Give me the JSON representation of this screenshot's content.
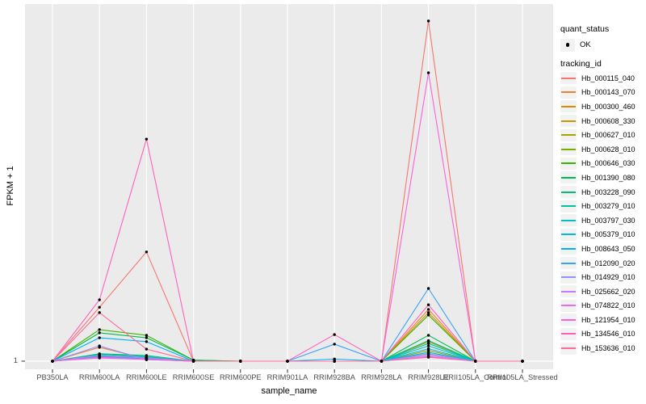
{
  "chart_data": {
    "type": "line",
    "title": "",
    "xlabel": "sample_name",
    "ylabel": "FPKM + 1",
    "y_tick_label": "1",
    "ylim": [
      0,
      100
    ],
    "grid": "white major gridlines on grey panel",
    "legend_position": "right",
    "panel_bg": "#EBEBEB",
    "gridline_color": "#FFFFFF",
    "point_color": "#000000",
    "categories": [
      "PB350LA",
      "RRIM600LA",
      "RRIM600LE",
      "RRIM600SE",
      "RRIM600PE",
      "RRIM901LA",
      "RRIM928BA",
      "RRIM928LA",
      "RRIM928LE",
      "RRII105LA_Control",
      "RRII105LA_Stressed"
    ],
    "series": [
      {
        "name": "Hb_000115_040",
        "color": "#F8766D",
        "values": [
          0,
          15.2,
          30.8,
          0,
          0,
          0,
          0,
          0,
          95.9,
          0,
          0
        ]
      },
      {
        "name": "Hb_000143_070",
        "color": "#EA8331",
        "values": [
          0,
          3.9,
          0.7,
          0,
          0,
          0,
          0,
          0,
          14.6,
          0,
          0
        ]
      },
      {
        "name": "Hb_000300_460",
        "color": "#D89000",
        "values": [
          0,
          1.6,
          0.7,
          0,
          0,
          0,
          0,
          0,
          13.7,
          0,
          0
        ]
      },
      {
        "name": "Hb_000608_330",
        "color": "#C09B00",
        "values": [
          0,
          1.3,
          0.9,
          0,
          0,
          0,
          0,
          0,
          5.5,
          0,
          0
        ]
      },
      {
        "name": "Hb_000627_010",
        "color": "#A3A500",
        "values": [
          0,
          1.1,
          0.5,
          0,
          0,
          0,
          0,
          0,
          3.0,
          0,
          0
        ]
      },
      {
        "name": "Hb_000628_010",
        "color": "#7CAE00",
        "values": [
          0,
          1.5,
          1.0,
          0,
          0,
          0,
          0,
          0,
          2.1,
          0,
          0
        ]
      },
      {
        "name": "Hb_000646_030",
        "color": "#39B600",
        "values": [
          0,
          8.9,
          7.3,
          0.3,
          0,
          0,
          0,
          0,
          13.0,
          0,
          0
        ]
      },
      {
        "name": "Hb_001390_080",
        "color": "#00BB4E",
        "values": [
          0,
          8.0,
          6.6,
          0.3,
          0,
          0,
          0,
          0,
          7.3,
          0,
          0
        ]
      },
      {
        "name": "Hb_003228_090",
        "color": "#00BF7D",
        "values": [
          0,
          2.1,
          1.6,
          0,
          0,
          0,
          0,
          0,
          5.8,
          0,
          0
        ]
      },
      {
        "name": "Hb_003279_010",
        "color": "#00C1A3",
        "values": [
          0,
          1.9,
          1.3,
          0,
          0,
          0,
          0,
          0,
          5.0,
          0,
          0
        ]
      },
      {
        "name": "Hb_003797_030",
        "color": "#00BFC4",
        "values": [
          0,
          1.6,
          1.1,
          0,
          0,
          0,
          0,
          0,
          4.3,
          0,
          0
        ]
      },
      {
        "name": "Hb_005379_010",
        "color": "#00BAE0",
        "values": [
          0,
          1.3,
          0.7,
          0,
          0,
          0,
          0,
          0,
          3.5,
          0,
          0
        ]
      },
      {
        "name": "Hb_008643_050",
        "color": "#00B0F6",
        "values": [
          0,
          6.6,
          5.5,
          0,
          0,
          0,
          0.6,
          0,
          2.5,
          0,
          0
        ]
      },
      {
        "name": "Hb_012090_020",
        "color": "#35A2FF",
        "values": [
          0,
          1.1,
          0.6,
          0,
          0,
          0,
          4.8,
          0,
          20.5,
          0,
          0
        ]
      },
      {
        "name": "Hb_014929_010",
        "color": "#9590FF",
        "values": [
          0,
          4.3,
          0.4,
          0,
          0,
          0,
          0,
          0,
          2.0,
          0,
          0
        ]
      },
      {
        "name": "Hb_025662_020",
        "color": "#C77CFF",
        "values": [
          0,
          1.6,
          0.9,
          0,
          0,
          0,
          0,
          0,
          1.6,
          0,
          0
        ]
      },
      {
        "name": "Hb_074822_010",
        "color": "#E76BF3",
        "values": [
          0,
          1.1,
          0.5,
          0,
          0,
          0,
          0,
          0,
          1.3,
          0,
          0
        ]
      },
      {
        "name": "Hb_121954_010",
        "color": "#FA62DB",
        "values": [
          0,
          0.9,
          0.5,
          0,
          0,
          0,
          0,
          0,
          81.3,
          0,
          0
        ]
      },
      {
        "name": "Hb_134546_010",
        "color": "#FF62BC",
        "values": [
          0,
          17.3,
          62.6,
          0,
          0,
          0,
          7.5,
          0,
          15.9,
          0,
          0
        ]
      },
      {
        "name": "Hb_153636_010",
        "color": "#FF6A98",
        "values": [
          0,
          13.7,
          3.4,
          0,
          0,
          0,
          0,
          0,
          1.1,
          0,
          0
        ]
      }
    ]
  },
  "legend": {
    "quant_status": {
      "title": "quant_status",
      "items": [
        {
          "label": "OK",
          "glyph": "point",
          "color": "#000000"
        }
      ]
    },
    "tracking_id": {
      "title": "tracking_id"
    }
  }
}
